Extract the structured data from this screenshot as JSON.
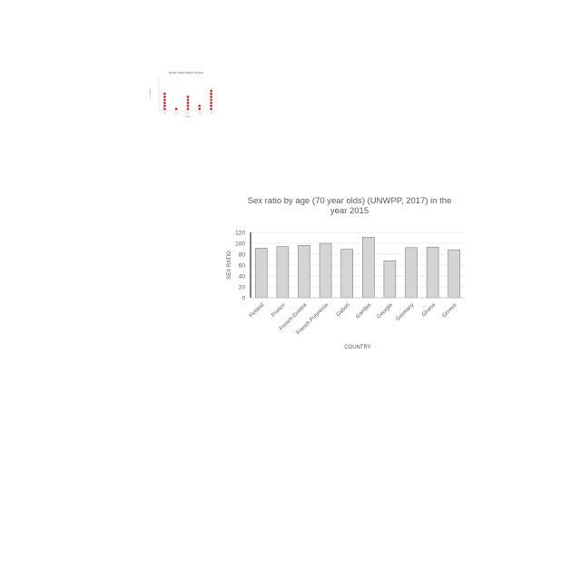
{
  "thumbnail_chart": {
    "type": "scatter",
    "title": "Number of Rainy Places in the West",
    "xlabel": "Rating",
    "ylabel": "No. of Places",
    "categories": [
      "Cat 1",
      "Cat 2",
      "Cat 3",
      "Cat 4",
      "Cat 5"
    ],
    "counts": [
      6,
      1,
      5,
      2,
      7
    ],
    "ylim": [
      0,
      10
    ],
    "dot_color": "#cc2222"
  },
  "chart_data": {
    "type": "bar",
    "title_line1": "Sex ratio by age (70 year olds) (UNWPP, 2017) in the",
    "title_line2": "year 2015",
    "xlabel": "COUNTRY",
    "ylabel": "SEX RATIO",
    "categories": [
      "Finland",
      "France",
      "French Guiana",
      "French Polynesia",
      "Gabon",
      "Gambia",
      "Georgia",
      "Germany",
      "Ghana",
      "Greece"
    ],
    "values": [
      91,
      94,
      96,
      100,
      89,
      111,
      68,
      92,
      93,
      88
    ],
    "ylim": [
      0,
      120
    ],
    "yticks": [
      0,
      20,
      40,
      60,
      80,
      100,
      120
    ],
    "grid": true,
    "bar_color": "#d4d4d4",
    "bar_stroke": "#7f7f7f"
  }
}
